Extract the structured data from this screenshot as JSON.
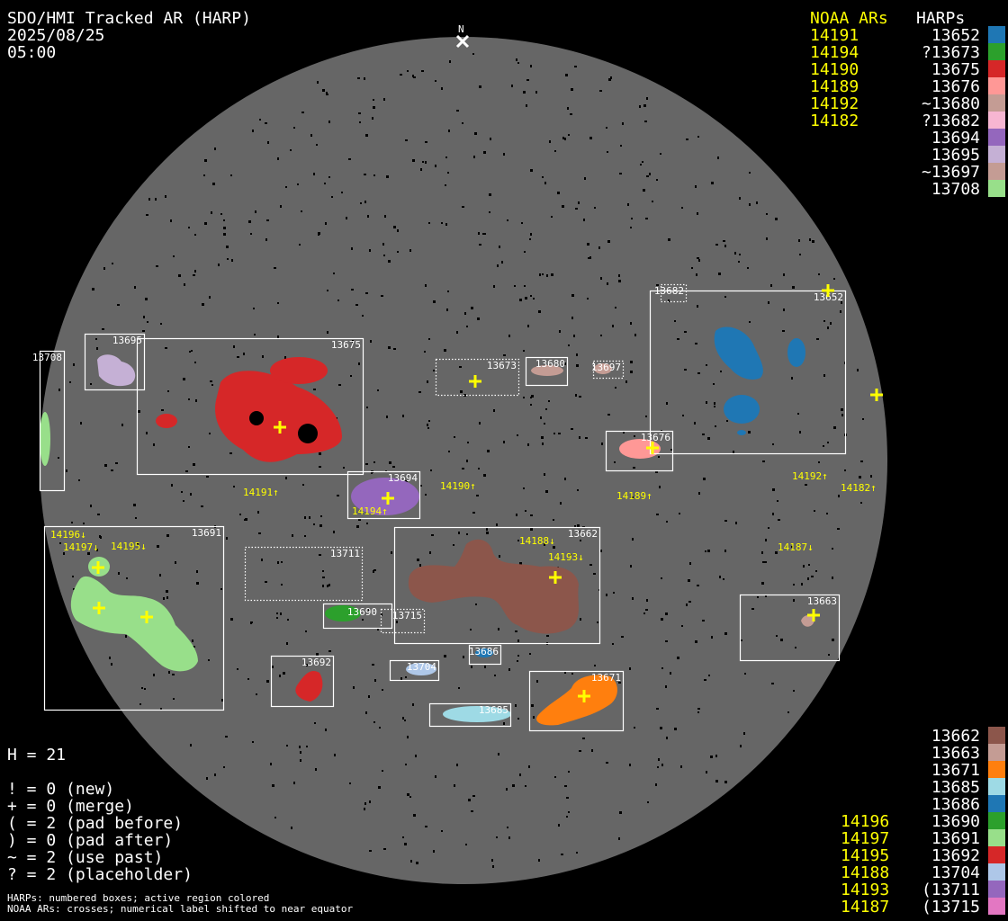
{
  "title": {
    "line1": "SDO/HMI Tracked AR (HARP)",
    "date": "2025/08/25",
    "time": "05:00"
  },
  "north_label": "N",
  "legend_top": {
    "noaa_header": "NOAA ARs",
    "harp_header": "HARPs",
    "rows": [
      {
        "noaa": "14191",
        "harp": "13652",
        "color": "#1f77b4"
      },
      {
        "noaa": "14194",
        "harp": "?13673",
        "color": "#2ca02c"
      },
      {
        "noaa": "14190",
        "harp": "13675",
        "color": "#d62728"
      },
      {
        "noaa": "14189",
        "harp": "13676",
        "color": "#ff9896"
      },
      {
        "noaa": "14192",
        "harp": "~13680",
        "color": "#c49c94"
      },
      {
        "noaa": "14182",
        "harp": "?13682",
        "color": "#f7b6d2"
      },
      {
        "noaa": "",
        "harp": "13694",
        "color": "#9467bd"
      },
      {
        "noaa": "",
        "harp": "13695",
        "color": "#c5b0d5"
      },
      {
        "noaa": "",
        "harp": "~13697",
        "color": "#c49c94"
      },
      {
        "noaa": "",
        "harp": "13708",
        "color": "#98df8a"
      }
    ]
  },
  "legend_bottom": {
    "rows": [
      {
        "noaa": "",
        "harp": "13662",
        "color": "#8c564b"
      },
      {
        "noaa": "",
        "harp": "13663",
        "color": "#c49c94"
      },
      {
        "noaa": "",
        "harp": "13671",
        "color": "#ff7f0e"
      },
      {
        "noaa": "",
        "harp": "13685",
        "color": "#9edae5"
      },
      {
        "noaa": "",
        "harp": "13686",
        "color": "#1f77b4"
      },
      {
        "noaa": "14196",
        "harp": "13690",
        "color": "#2ca02c"
      },
      {
        "noaa": "14197",
        "harp": "13691",
        "color": "#98df8a"
      },
      {
        "noaa": "14195",
        "harp": "13692",
        "color": "#d62728"
      },
      {
        "noaa": "14188",
        "harp": "13704",
        "color": "#aec7e8"
      },
      {
        "noaa": "14193",
        "harp": "(13711",
        "color": "#9467bd"
      },
      {
        "noaa": "14187",
        "harp": "(13715",
        "color": "#e377c2"
      }
    ]
  },
  "stats": {
    "h_count": "H = 21",
    "lines": [
      "! = 0 (new)",
      "+ = 0 (merge)",
      "( = 2 (pad before)",
      ") = 0 (pad after)",
      "~ = 2 (use past)",
      "? = 2 (placeholder)"
    ]
  },
  "footnotes": [
    "HARPs: numbered boxes; active region colored",
    "NOAA ARs: crosses; numerical label shifted to near equator"
  ],
  "harp_boxes": [
    {
      "id": "13675",
      "style": "solid"
    },
    {
      "id": "13695",
      "style": "solid"
    },
    {
      "id": "13708",
      "style": "solid"
    },
    {
      "id": "13694",
      "style": "solid"
    },
    {
      "id": "13673",
      "style": "dotted"
    },
    {
      "id": "13680",
      "style": "solid"
    },
    {
      "id": "13697",
      "style": "dotted"
    },
    {
      "id": "13682",
      "style": "dotted"
    },
    {
      "id": "13652",
      "style": "solid"
    },
    {
      "id": "13676",
      "style": "solid"
    },
    {
      "id": "13691",
      "style": "solid"
    },
    {
      "id": "13711",
      "style": "dotted"
    },
    {
      "id": "13662",
      "style": "solid"
    },
    {
      "id": "13690",
      "style": "solid"
    },
    {
      "id": "13715",
      "style": "dotted"
    },
    {
      "id": "13663",
      "style": "solid"
    },
    {
      "id": "13686",
      "style": "solid"
    },
    {
      "id": "13704",
      "style": "solid"
    },
    {
      "id": "13692",
      "style": "solid"
    },
    {
      "id": "13671",
      "style": "solid"
    },
    {
      "id": "13685",
      "style": "solid"
    }
  ],
  "noaa_labels": [
    "14191↑",
    "14190↑",
    "14189↑",
    "14192↑",
    "14182↑",
    "14194↑",
    "14188↓",
    "14193↓",
    "14187↓",
    "14196↓",
    "14197↓",
    "14195↓"
  ],
  "colors": {
    "disk": "#666666",
    "background": "#000000",
    "noaa": "#ffff00",
    "harp_text": "#ffffff"
  }
}
